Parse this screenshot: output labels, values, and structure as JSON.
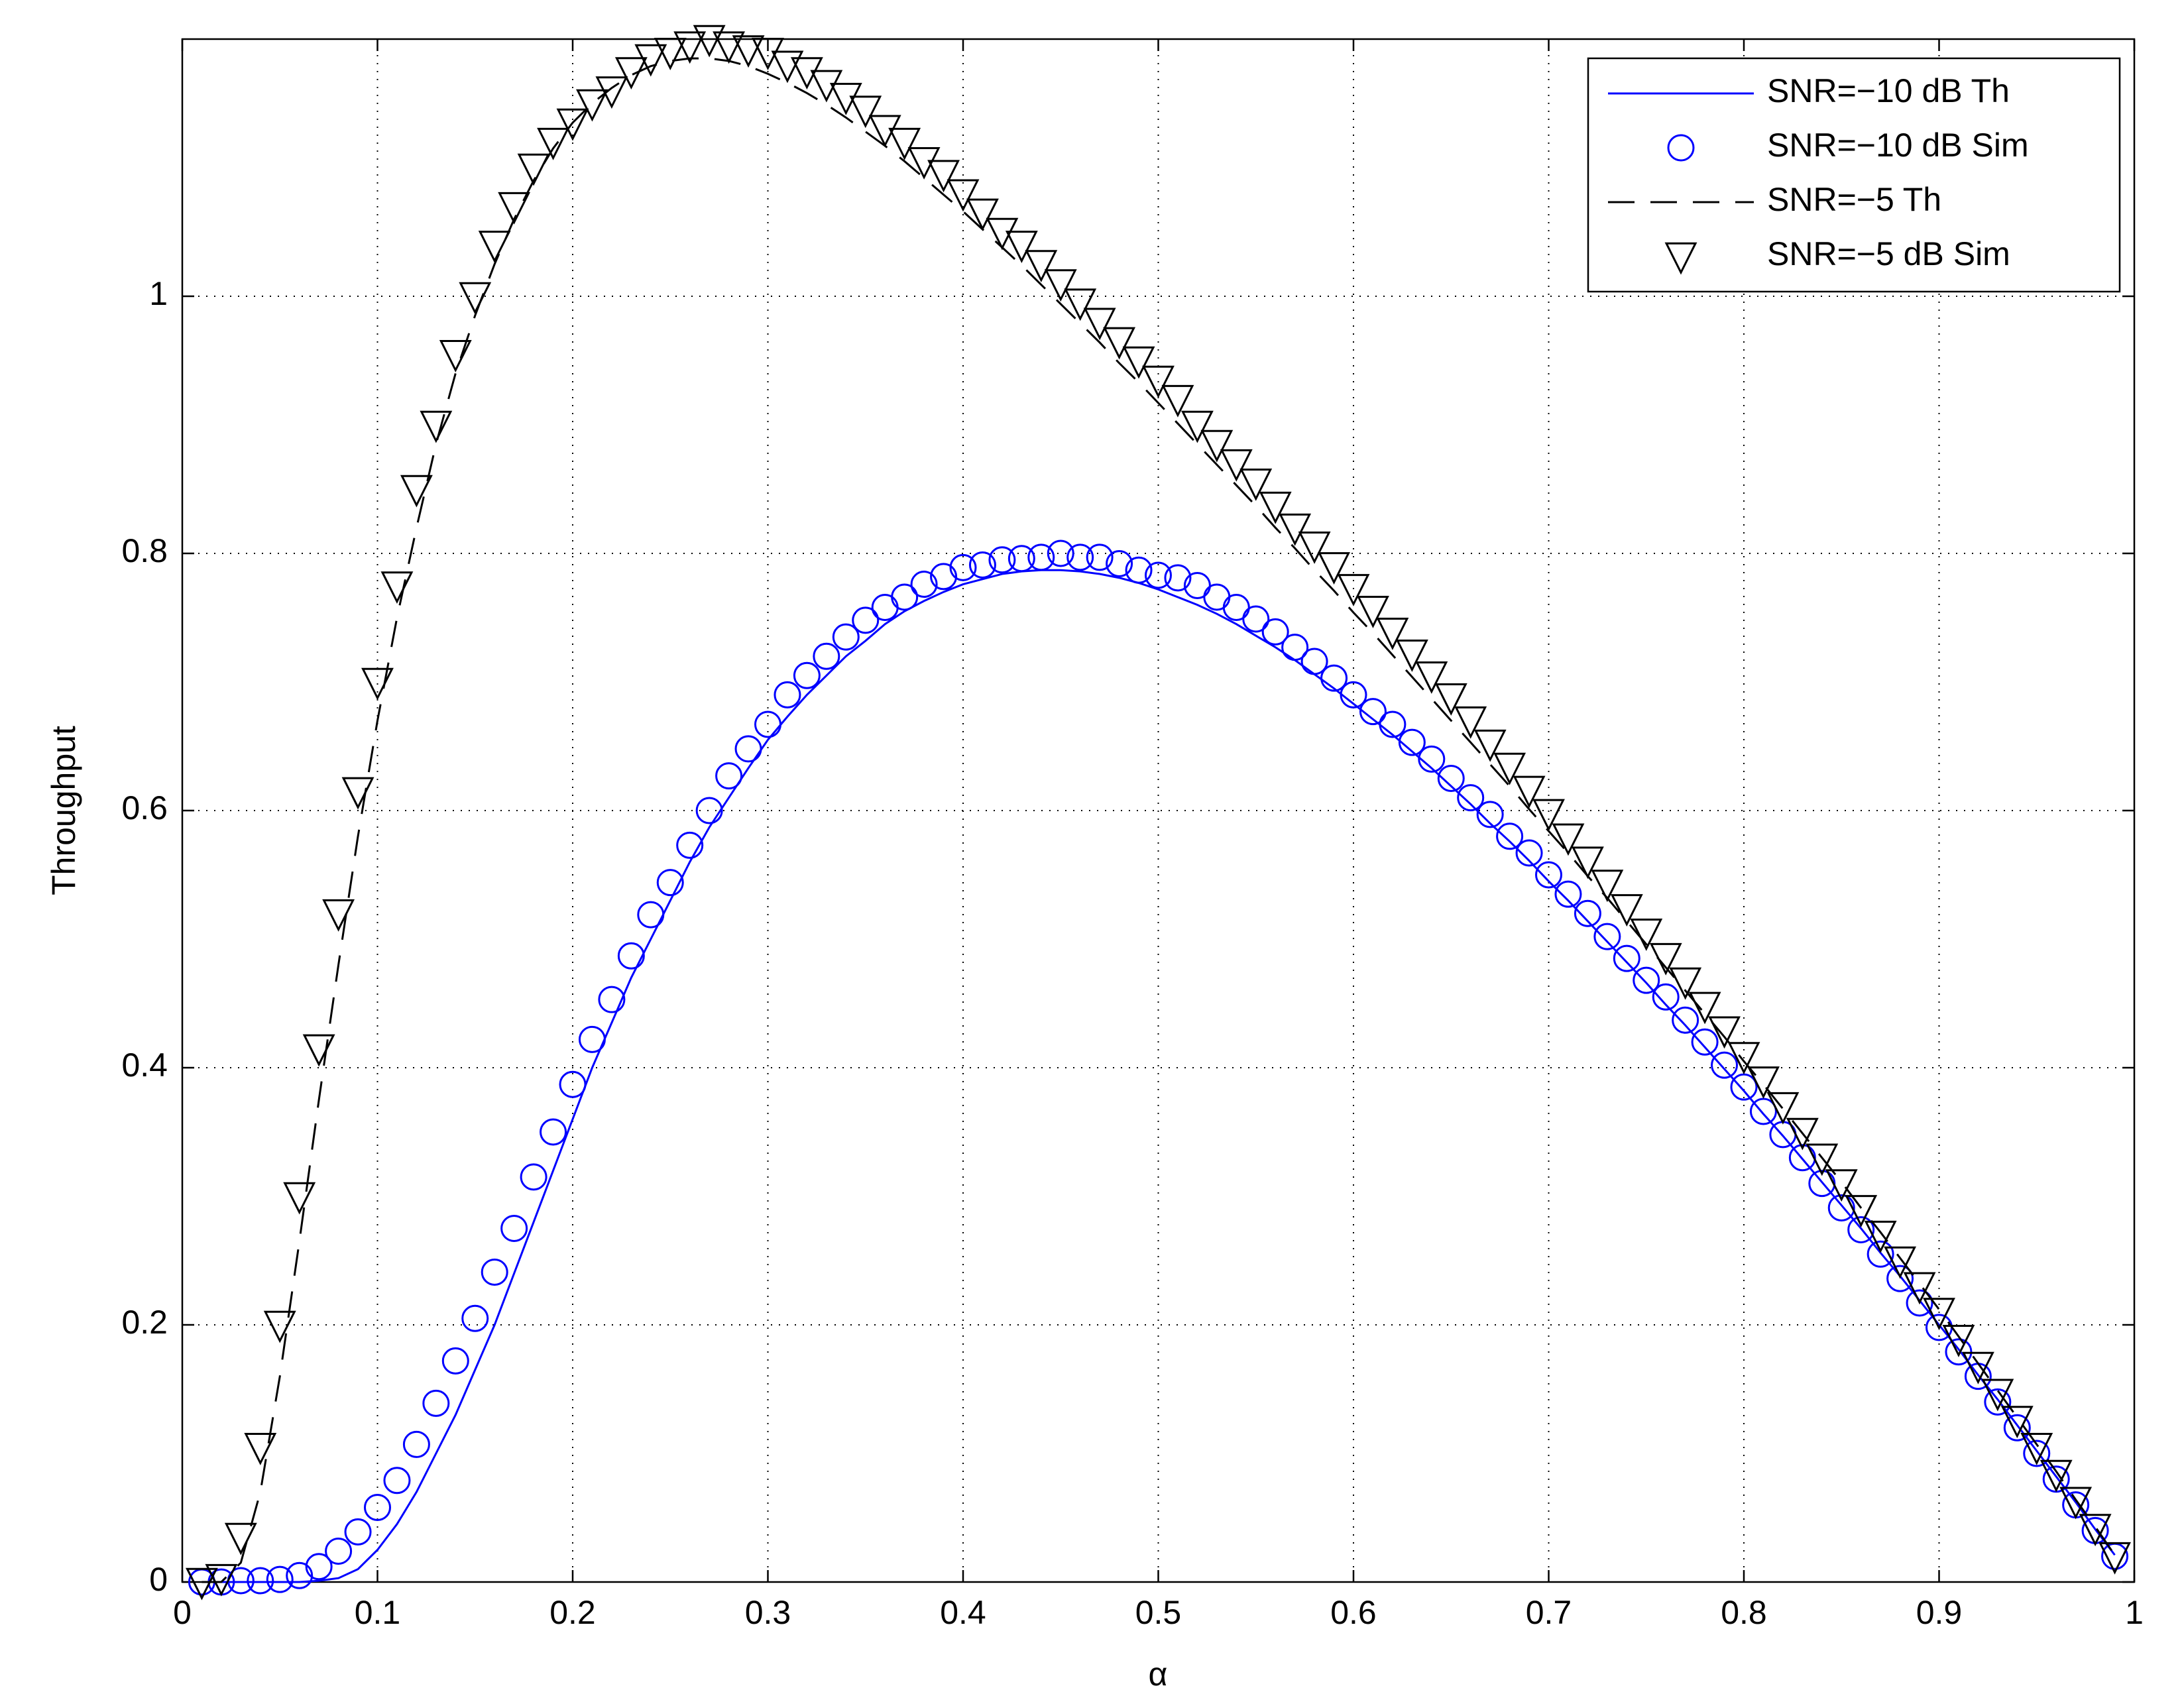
{
  "chart_data": {
    "type": "line",
    "xlabel": "α",
    "ylabel": "Throughput",
    "xlim": [
      0,
      1
    ],
    "ylim": [
      0,
      1.2
    ],
    "xticks": [
      0,
      0.1,
      0.2,
      0.3,
      0.4,
      0.5,
      0.6,
      0.7,
      0.8,
      0.9,
      1
    ],
    "yticks": [
      0,
      0.2,
      0.4,
      0.6,
      0.8,
      1
    ],
    "grid": true,
    "legend": "northeast",
    "x": [
      0.01,
      0.02,
      0.03,
      0.04,
      0.05,
      0.06,
      0.07,
      0.08,
      0.09,
      0.1,
      0.11,
      0.12,
      0.13,
      0.14,
      0.15,
      0.16,
      0.17,
      0.18,
      0.19,
      0.2,
      0.21,
      0.22,
      0.23,
      0.24,
      0.25,
      0.26,
      0.27,
      0.28,
      0.29,
      0.3,
      0.31,
      0.32,
      0.33,
      0.34,
      0.35,
      0.36,
      0.37,
      0.38,
      0.39,
      0.4,
      0.41,
      0.42,
      0.43,
      0.44,
      0.45,
      0.46,
      0.47,
      0.48,
      0.49,
      0.5,
      0.51,
      0.52,
      0.53,
      0.54,
      0.55,
      0.56,
      0.57,
      0.58,
      0.59,
      0.6,
      0.61,
      0.62,
      0.63,
      0.64,
      0.65,
      0.66,
      0.67,
      0.68,
      0.69,
      0.7,
      0.71,
      0.72,
      0.73,
      0.74,
      0.75,
      0.76,
      0.77,
      0.78,
      0.79,
      0.8,
      0.81,
      0.82,
      0.83,
      0.84,
      0.85,
      0.86,
      0.87,
      0.88,
      0.89,
      0.9,
      0.91,
      0.92,
      0.93,
      0.94,
      0.95,
      0.96,
      0.97,
      0.98,
      0.99
    ],
    "series": [
      {
        "name": "SNR=−10 dB Th",
        "color": "#0000ff",
        "line": "solid",
        "marker": "none",
        "values": [
          0,
          0,
          0,
          0,
          0,
          0,
          0.001,
          0.003,
          0.01,
          0.025,
          0.045,
          0.07,
          0.1,
          0.13,
          0.165,
          0.2,
          0.24,
          0.28,
          0.32,
          0.36,
          0.4,
          0.435,
          0.47,
          0.5,
          0.53,
          0.56,
          0.587,
          0.61,
          0.633,
          0.655,
          0.673,
          0.69,
          0.705,
          0.72,
          0.732,
          0.745,
          0.755,
          0.763,
          0.77,
          0.776,
          0.78,
          0.784,
          0.786,
          0.787,
          0.787,
          0.786,
          0.784,
          0.781,
          0.777,
          0.772,
          0.766,
          0.76,
          0.753,
          0.745,
          0.736,
          0.727,
          0.717,
          0.706,
          0.695,
          0.683,
          0.671,
          0.659,
          0.646,
          0.633,
          0.619,
          0.605,
          0.59,
          0.576,
          0.561,
          0.545,
          0.53,
          0.514,
          0.498,
          0.482,
          0.466,
          0.449,
          0.433,
          0.416,
          0.399,
          0.382,
          0.364,
          0.347,
          0.329,
          0.311,
          0.293,
          0.275,
          0.256,
          0.238,
          0.219,
          0.2,
          0.181,
          0.161,
          0.142,
          0.122,
          0.102,
          0.082,
          0.062,
          0.041,
          0.021
        ]
      },
      {
        "name": "SNR=−10 dB Sim",
        "color": "#0000ff",
        "line": "none",
        "marker": "circle",
        "values": [
          0,
          0,
          0.001,
          0.001,
          0.002,
          0.005,
          0.012,
          0.024,
          0.039,
          0.058,
          0.079,
          0.107,
          0.139,
          0.172,
          0.205,
          0.241,
          0.275,
          0.315,
          0.35,
          0.387,
          0.422,
          0.453,
          0.487,
          0.519,
          0.544,
          0.573,
          0.6,
          0.627,
          0.648,
          0.667,
          0.69,
          0.705,
          0.72,
          0.735,
          0.748,
          0.758,
          0.766,
          0.776,
          0.782,
          0.789,
          0.791,
          0.795,
          0.796,
          0.797,
          0.8,
          0.797,
          0.797,
          0.792,
          0.787,
          0.783,
          0.781,
          0.775,
          0.766,
          0.758,
          0.749,
          0.739,
          0.727,
          0.716,
          0.703,
          0.69,
          0.677,
          0.667,
          0.653,
          0.64,
          0.625,
          0.61,
          0.597,
          0.58,
          0.567,
          0.55,
          0.535,
          0.52,
          0.502,
          0.485,
          0.468,
          0.455,
          0.437,
          0.42,
          0.402,
          0.385,
          0.366,
          0.348,
          0.33,
          0.31,
          0.291,
          0.274,
          0.255,
          0.236,
          0.217,
          0.198,
          0.179,
          0.16,
          0.14,
          0.12,
          0.1,
          0.08,
          0.06,
          0.04,
          0.02
        ]
      },
      {
        "name": "SNR=−5 Th",
        "color": "#000000",
        "line": "dashed",
        "marker": "none",
        "values": [
          0,
          0,
          0.015,
          0.07,
          0.16,
          0.265,
          0.375,
          0.48,
          0.58,
          0.67,
          0.75,
          0.82,
          0.885,
          0.94,
          0.985,
          1.025,
          1.06,
          1.09,
          1.115,
          1.135,
          1.15,
          1.162,
          1.172,
          1.179,
          1.183,
          1.185,
          1.185,
          1.183,
          1.179,
          1.173,
          1.166,
          1.158,
          1.149,
          1.139,
          1.128,
          1.117,
          1.105,
          1.092,
          1.079,
          1.066,
          1.052,
          1.038,
          1.024,
          1.009,
          0.994,
          0.979,
          0.964,
          0.948,
          0.933,
          0.917,
          0.901,
          0.885,
          0.869,
          0.853,
          0.837,
          0.82,
          0.804,
          0.787,
          0.771,
          0.754,
          0.738,
          0.721,
          0.704,
          0.687,
          0.67,
          0.653,
          0.636,
          0.619,
          0.601,
          0.584,
          0.567,
          0.549,
          0.532,
          0.514,
          0.496,
          0.478,
          0.46,
          0.442,
          0.424,
          0.405,
          0.387,
          0.368,
          0.349,
          0.33,
          0.311,
          0.291,
          0.272,
          0.252,
          0.232,
          0.212,
          0.191,
          0.17,
          0.149,
          0.128,
          0.107,
          0.086,
          0.064,
          0.043,
          0.021
        ]
      },
      {
        "name": "SNR=−5 dB Sim",
        "color": "#000000",
        "line": "none",
        "marker": "triangle-down",
        "values": [
          0,
          0.003,
          0.035,
          0.105,
          0.2,
          0.3,
          0.415,
          0.52,
          0.615,
          0.7,
          0.775,
          0.85,
          0.9,
          0.955,
          1.0,
          1.04,
          1.07,
          1.1,
          1.12,
          1.135,
          1.15,
          1.16,
          1.175,
          1.185,
          1.19,
          1.195,
          1.2,
          1.195,
          1.192,
          1.19,
          1.18,
          1.175,
          1.165,
          1.155,
          1.145,
          1.13,
          1.12,
          1.105,
          1.095,
          1.08,
          1.065,
          1.05,
          1.04,
          1.025,
          1.01,
          0.995,
          0.98,
          0.965,
          0.95,
          0.935,
          0.92,
          0.9,
          0.885,
          0.87,
          0.855,
          0.837,
          0.82,
          0.806,
          0.79,
          0.773,
          0.756,
          0.739,
          0.722,
          0.705,
          0.688,
          0.67,
          0.652,
          0.634,
          0.616,
          0.598,
          0.579,
          0.561,
          0.543,
          0.524,
          0.505,
          0.486,
          0.467,
          0.448,
          0.429,
          0.409,
          0.39,
          0.37,
          0.35,
          0.33,
          0.31,
          0.29,
          0.27,
          0.25,
          0.23,
          0.21,
          0.189,
          0.168,
          0.147,
          0.126,
          0.105,
          0.084,
          0.063,
          0.042,
          0.02
        ]
      }
    ]
  }
}
